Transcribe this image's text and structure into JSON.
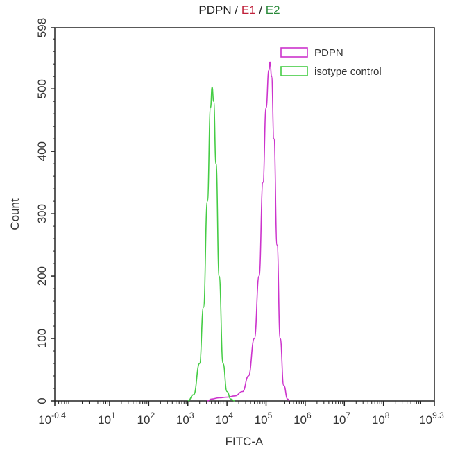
{
  "chart_data": {
    "type": "line",
    "title_parts": [
      {
        "text": "PDPN",
        "color": "#222222"
      },
      {
        "text": " / ",
        "color": "#222222"
      },
      {
        "text": "E1",
        "color": "#c0203a"
      },
      {
        "text": " / ",
        "color": "#222222"
      },
      {
        "text": "E2",
        "color": "#2a8a3a"
      }
    ],
    "xlabel": "FITC-A",
    "ylabel": "Count",
    "xscale": "log10",
    "xlim_log10": [
      -0.4,
      9.3
    ],
    "ylim": [
      0,
      598
    ],
    "x_ticks": [
      {
        "base": "10",
        "exp": "-0.4",
        "log": -0.4
      },
      {
        "base": "10",
        "exp": "1",
        "log": 1
      },
      {
        "base": "10",
        "exp": "2",
        "log": 2
      },
      {
        "base": "10",
        "exp": "3",
        "log": 3
      },
      {
        "base": "10",
        "exp": "4",
        "log": 4
      },
      {
        "base": "10",
        "exp": "5",
        "log": 5
      },
      {
        "base": "10",
        "exp": "6",
        "log": 6
      },
      {
        "base": "10",
        "exp": "7",
        "log": 7
      },
      {
        "base": "10",
        "exp": "8",
        "log": 8
      },
      {
        "base": "10",
        "exp": "9.3",
        "log": 9.3
      }
    ],
    "y_ticks": [
      "0",
      "100",
      "200",
      "300",
      "400",
      "500",
      "598"
    ],
    "legend_position": "top-right",
    "series": [
      {
        "name": "PDPN",
        "color": "#cc33cc",
        "points_log10x": [
          [
            3.5,
            0
          ],
          [
            3.6,
            3
          ],
          [
            3.8,
            5
          ],
          [
            4.0,
            6
          ],
          [
            4.2,
            8
          ],
          [
            4.4,
            15
          ],
          [
            4.55,
            40
          ],
          [
            4.7,
            100
          ],
          [
            4.82,
            200
          ],
          [
            4.92,
            350
          ],
          [
            5.0,
            470
          ],
          [
            5.07,
            530
          ],
          [
            5.1,
            543
          ],
          [
            5.14,
            520
          ],
          [
            5.2,
            420
          ],
          [
            5.28,
            250
          ],
          [
            5.36,
            100
          ],
          [
            5.45,
            25
          ],
          [
            5.55,
            3
          ],
          [
            5.6,
            0
          ]
        ]
      },
      {
        "name": "isotype control",
        "color": "#44cc44",
        "points_log10x": [
          [
            3.0,
            0
          ],
          [
            3.15,
            10
          ],
          [
            3.3,
            60
          ],
          [
            3.4,
            150
          ],
          [
            3.5,
            320
          ],
          [
            3.58,
            470
          ],
          [
            3.62,
            503
          ],
          [
            3.66,
            480
          ],
          [
            3.72,
            380
          ],
          [
            3.8,
            200
          ],
          [
            3.9,
            60
          ],
          [
            4.0,
            15
          ],
          [
            4.1,
            3
          ],
          [
            4.2,
            0
          ]
        ]
      }
    ]
  }
}
